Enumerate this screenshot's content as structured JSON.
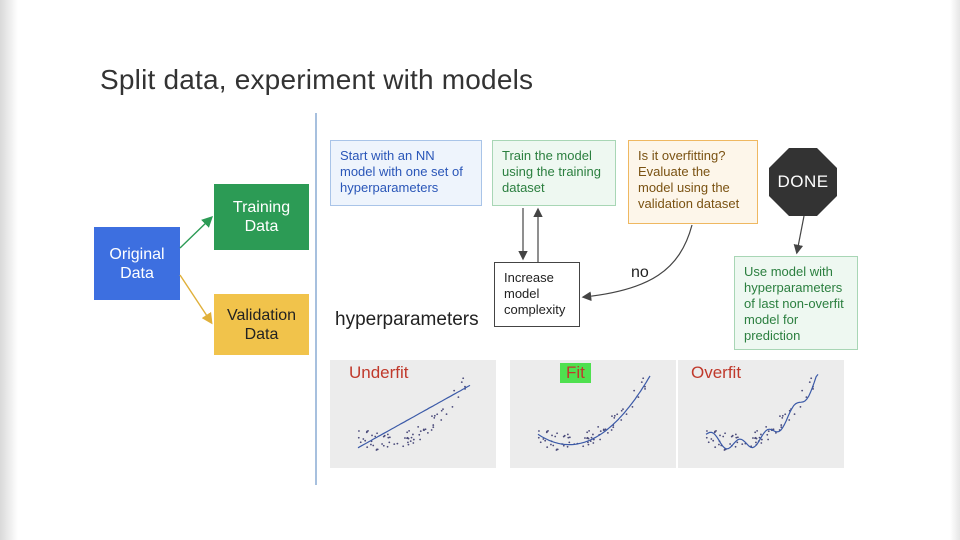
{
  "title": "Split data, experiment with models",
  "nodes": {
    "original": "Original Data",
    "training": "Training Data",
    "validation": "Validation Data"
  },
  "flow": {
    "start": "Start with an NN model with one set of hyperparameters",
    "train": "Train the model using the training dataset",
    "overfit": "Is it overfitting? Evaluate the model using the validation dataset",
    "increase": "Increase model complexity",
    "done": "DONE",
    "use": "Use model with hyperparameters of last non-overfit model for prediction",
    "no": "no"
  },
  "hyperparameters_label": "hyperparameters",
  "plots": [
    {
      "title": "Underfit",
      "fit": "linear"
    },
    {
      "title": "Fit",
      "fit": "quadratic"
    },
    {
      "title": "Overfit",
      "fit": "wiggly"
    }
  ],
  "colors": {
    "original": "#3d6fe0",
    "training": "#2c9b55",
    "validation": "#f1c34b",
    "done": "#333333",
    "plot_title": "#c0392b",
    "fit_highlight": "#4fe04f",
    "curve": "#3b5aa8"
  }
}
